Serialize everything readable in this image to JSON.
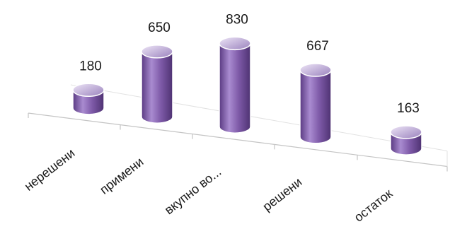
{
  "chart_data": {
    "type": "bar",
    "style": "3d-cylinder",
    "categories": [
      "нерешени",
      "примени",
      "вкупно во...",
      "решени",
      "остаток"
    ],
    "values": [
      180,
      650,
      830,
      667,
      163
    ],
    "title": "",
    "xlabel": "",
    "ylabel": "",
    "grid": false,
    "legend": "none",
    "data_labels": true,
    "colors": {
      "bar_body": "#7e5aa8",
      "bar_body_light": "#a98bd0",
      "bar_body_dark": "#4e3272",
      "bar_top": "#d9cdea",
      "bar_top_dark": "#9a82bd",
      "bar_outline": "#ffffff",
      "floor_line": "#c4c4c4",
      "text": "#1a1a1a"
    }
  }
}
